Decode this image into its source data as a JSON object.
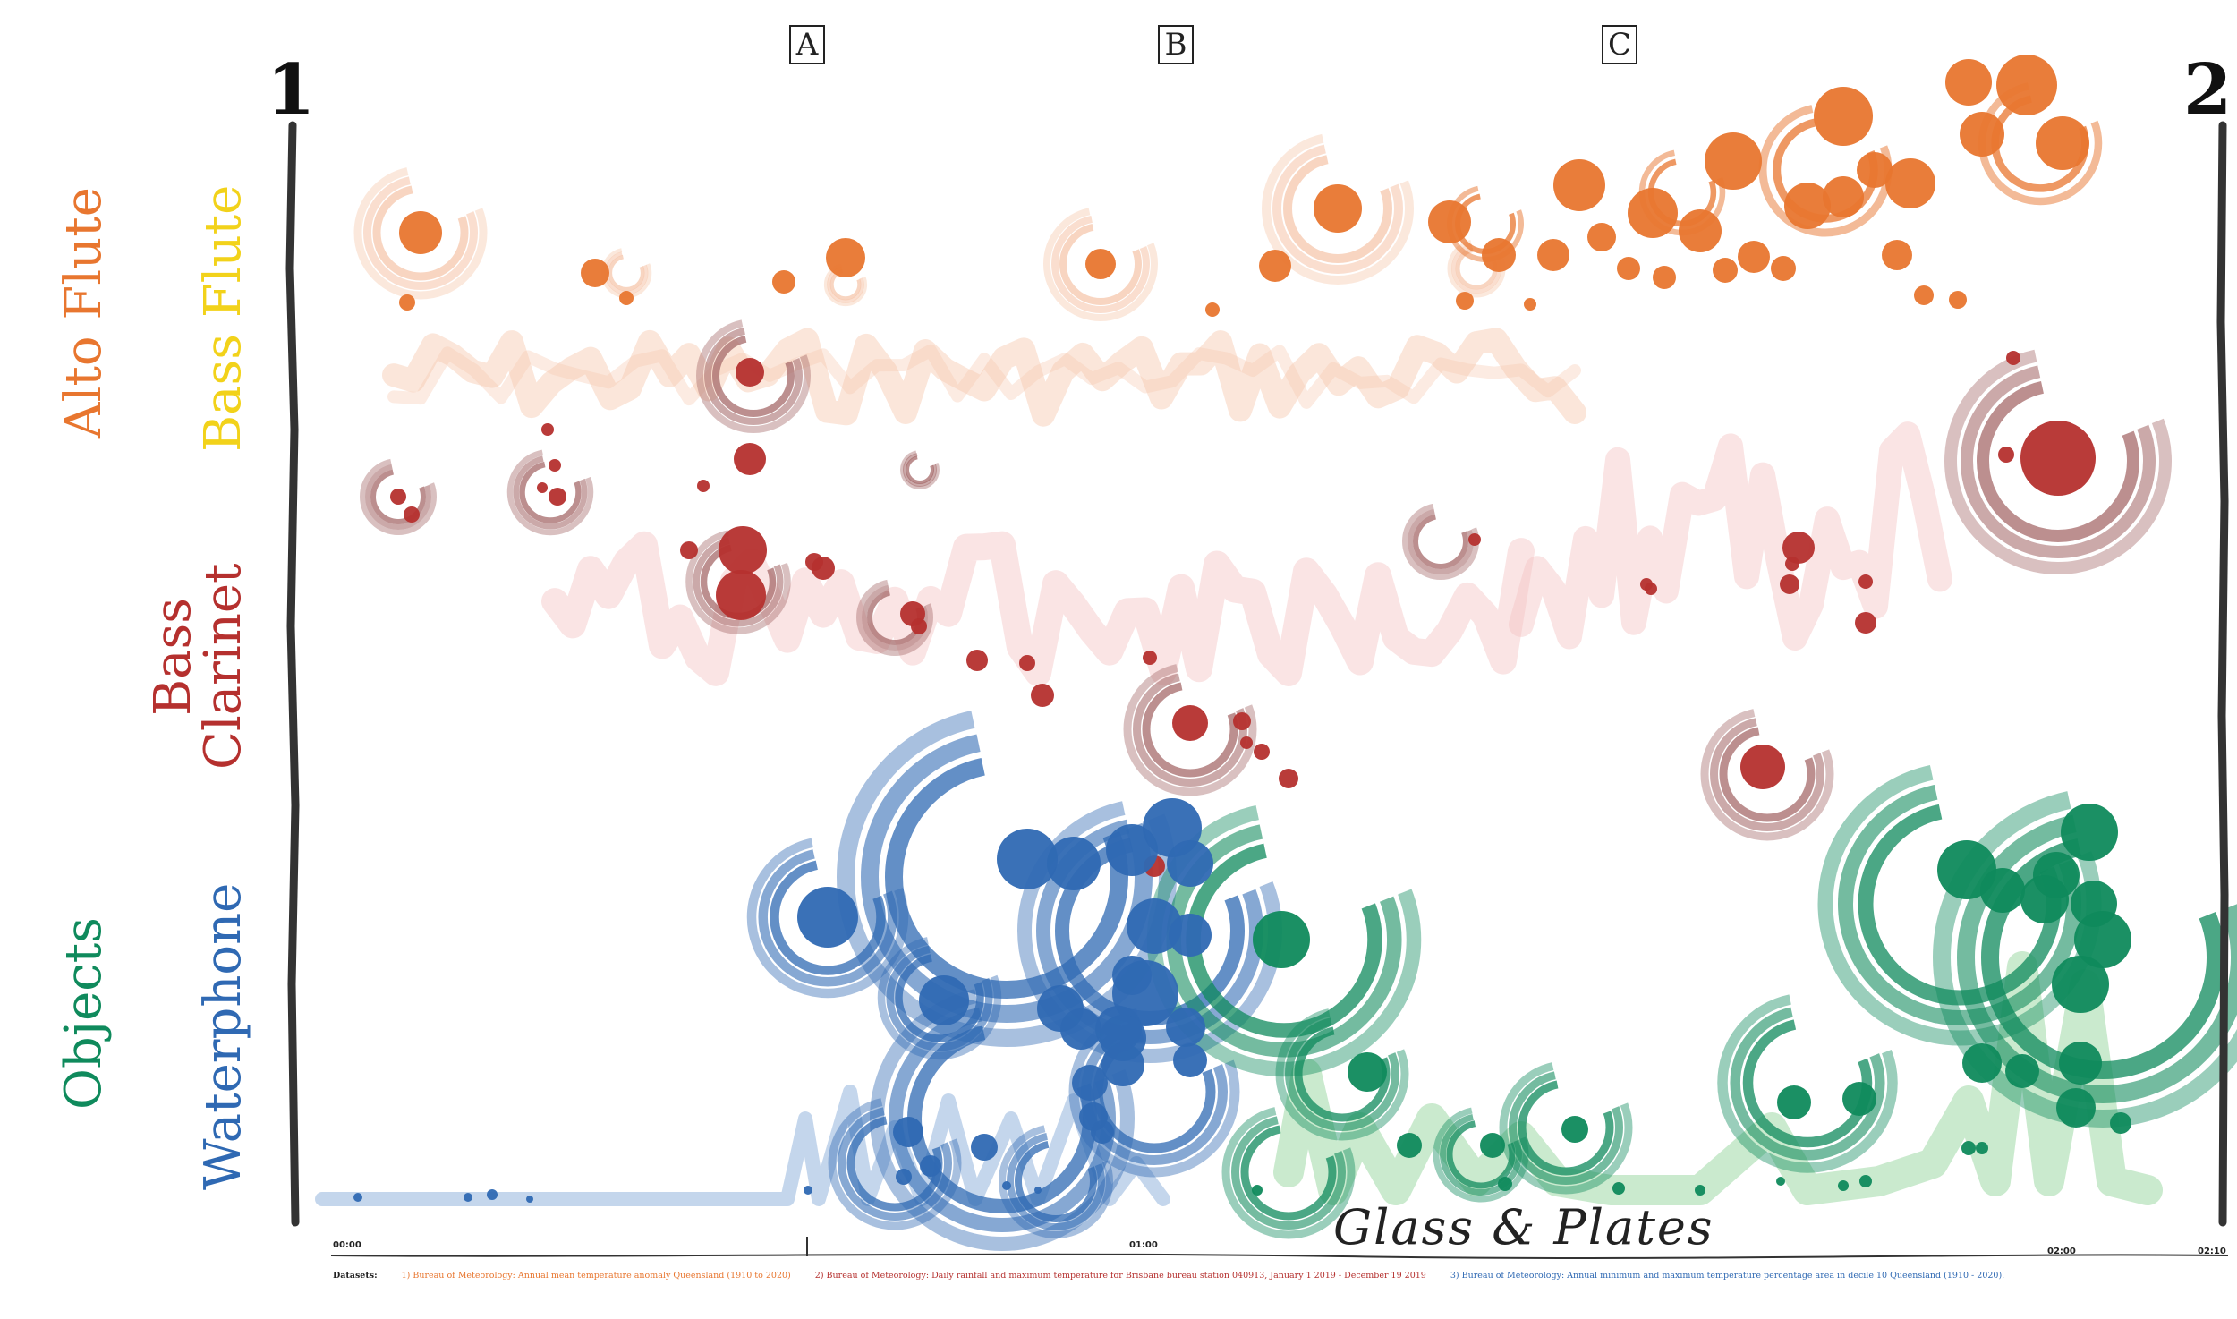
{
  "score": {
    "title": "Glass & Plates",
    "section_start": "1",
    "section_end": "2",
    "rehearsal_marks": [
      "A",
      "B",
      "C"
    ],
    "instruments": [
      {
        "name": "Alto Flute",
        "color": "#e8762f"
      },
      {
        "name": "Bass Flute",
        "color": "#f2d21a"
      },
      {
        "name": "Bass",
        "color": "#b5302e"
      },
      {
        "name": "Clarinet",
        "color": "#b5302e"
      },
      {
        "name": "Objects",
        "color": "#0f8a5c"
      },
      {
        "name": "Waterphone",
        "color": "#2f69b3"
      }
    ],
    "timeline": [
      "00:00",
      "01:00",
      "02:00",
      "02:10"
    ]
  },
  "datasets": {
    "heading": "Datasets:",
    "items": [
      {
        "text": "1) Bureau of Meteorology: Annual mean temperature anomaly Queensland (1910 to 2020)",
        "color": "#e8762f"
      },
      {
        "text": "2) Bureau of Meteorology: Daily rainfall and maximum temperature for Brisbane bureau station 040913, January 1 2019 - December 19 2019",
        "color": "#b5302e"
      },
      {
        "text": "3) Bureau of Meteorology: Annual minimum and maximum temperature percentage area in decile 10 Queensland (1910 - 2020).",
        "color": "#2f69b3"
      }
    ]
  },
  "palette": {
    "orange": "#e8762f",
    "orange_light": "#f6c7ac",
    "red": "#b5302e",
    "red_light": "#f3c4c4",
    "blue": "#2f69b3",
    "blue_light": "#9dbbe0",
    "green": "#0f8a5c",
    "green_light": "#9fd9a6",
    "ink": "#222222"
  }
}
